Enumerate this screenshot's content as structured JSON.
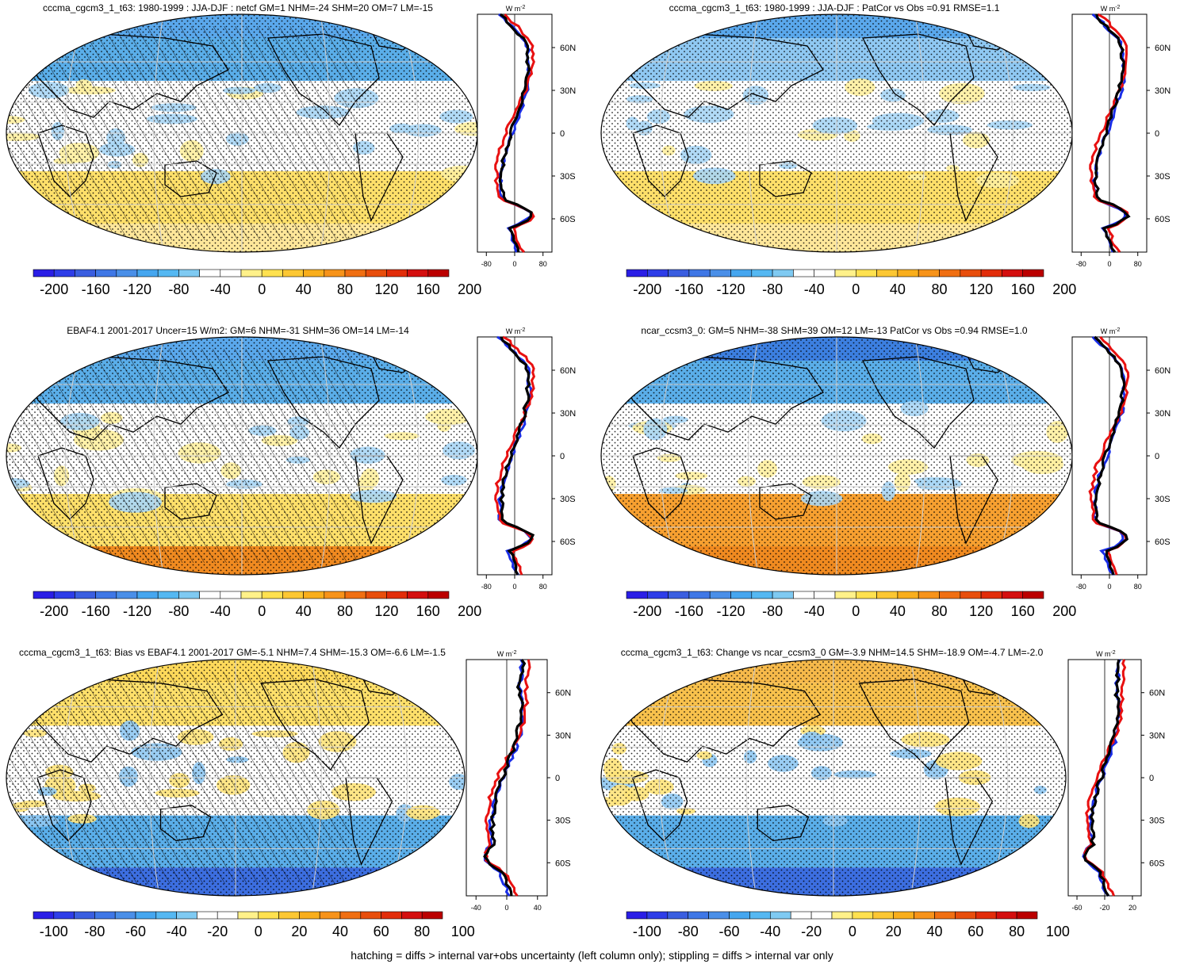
{
  "panels": [
    {
      "id": "p1",
      "title": "cccma_cgcm3_1_t63: 1980-1999 : JJA-DJF : netcf GM=1 NHM=-24 SHM=20 OM=7 LM=-15",
      "scale": "a",
      "hatch": true
    },
    {
      "id": "p2",
      "title": "cccma_cgcm3_1_t63: 1980-1999 : JJA-DJF : PatCor vs Obs =0.91 RMSE=1.1",
      "scale": "a",
      "hatch": false
    },
    {
      "id": "p3",
      "title": "EBAF4.1 2001-2017 Uncer=15 W/m2: GM=6 NHM=-31 SHM=36 OM=14 LM=-14",
      "scale": "a",
      "hatch": true
    },
    {
      "id": "p4",
      "title": "ncar_ccsm3_0: GM=5 NHM=-38 SHM=39 OM=12 LM=-13 PatCor vs Obs =0.94 RMSE=1.0",
      "scale": "a",
      "hatch": false
    },
    {
      "id": "p5",
      "title": "cccma_cgcm3_1_t63: Bias vs EBAF4.1 2001-2017 GM=-5.1 NHM=7.4 SHM=-15.3 OM=-6.6 LM=-1.5",
      "scale": "b",
      "hatch": true
    },
    {
      "id": "p6",
      "title": "cccma_cgcm3_1_t63: Change vs ncar_ccsm3_0 GM=-3.9 NHM=14.5 SHM=-18.9 OM=-4.7 LM=-2.0",
      "scale": "b",
      "hatch": false
    }
  ],
  "zonal_axis": {
    "unit_label": "W m",
    "unit_sup": "-2",
    "lat_labels": [
      "60N",
      "30N",
      "0",
      "30S",
      "60S"
    ],
    "xticks_a": [
      "-80",
      "0",
      "80"
    ],
    "xticks_b_left": [
      "-40",
      "0",
      "40"
    ],
    "xticks_b_right": [
      "-60",
      "-20",
      "20"
    ]
  },
  "colorbar": {
    "labels_a": [
      "-200",
      "-160",
      "-120",
      "-80",
      "-40",
      "0",
      "40",
      "80",
      "120",
      "160",
      "200"
    ],
    "labels_b": [
      "-100",
      "-80",
      "-60",
      "-40",
      "-20",
      "0",
      "20",
      "40",
      "60",
      "80",
      "100"
    ],
    "colors": [
      "#2a1ee6",
      "#2e3de8",
      "#3a5ee0",
      "#3f77e6",
      "#4a8fe8",
      "#45a6ef",
      "#55b8f2",
      "#7fcaf2",
      "#ffffff",
      "#ffffff",
      "#fff18a",
      "#ffe14f",
      "#fcc733",
      "#f9ae1c",
      "#f7931a",
      "#f06f12",
      "#e84e0c",
      "#e22d0a",
      "#d40f0f",
      "#bb0000"
    ]
  },
  "footer": "hatching = diffs > internal var+obs uncertainty (left column only); stippling = diffs > internal var only"
}
